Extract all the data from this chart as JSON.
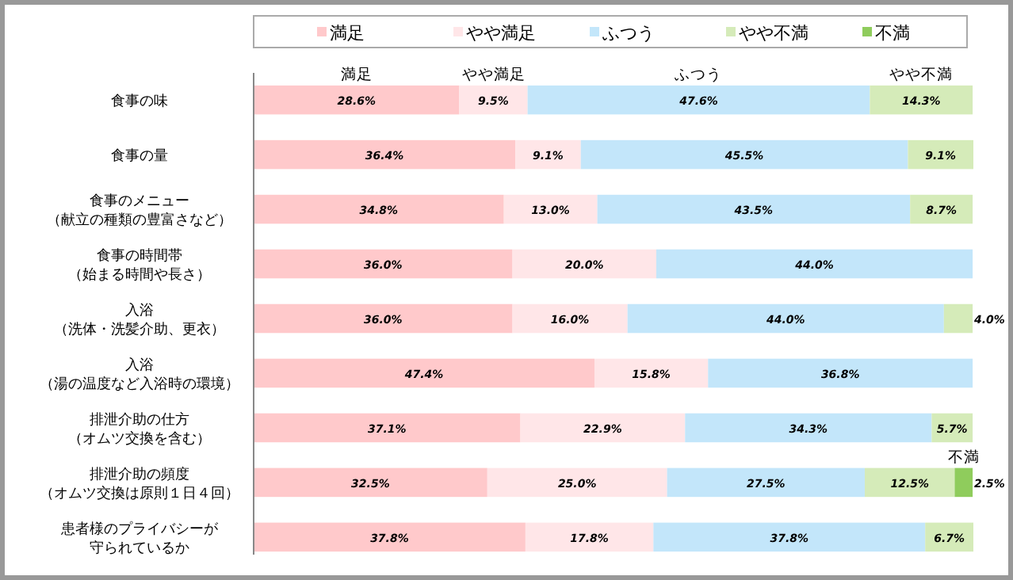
{
  "chart_data": {
    "type": "bar",
    "orientation": "horizontal",
    "stacked": true,
    "categories": [
      "食事の味",
      "食事の量",
      "食事のメニュー（献立の種類の豊富さなど）",
      "食事の時間帯（始まる時間や長さ）",
      "入浴（洗体・洗髪介助、更衣）",
      "入浴（湯の温度など入浴時の環境）",
      "排泄介助の仕方（オムツ交換を含む）",
      "排泄介助の頻度（オムツ交換は原則１日４回）",
      "患者様のプライバシーが守られているか"
    ],
    "series": [
      {
        "name": "満足",
        "color": "#ffc9cb",
        "values": [
          28.6,
          36.4,
          34.8,
          36.0,
          36.0,
          47.4,
          37.1,
          32.5,
          37.8
        ],
        "value_labels": [
          "28.6%",
          "36.4%",
          "34.8%",
          "36.0%",
          "36.0%",
          "47.4%",
          "37.1%",
          "32.5%",
          "37.8%"
        ]
      },
      {
        "name": "やや満足",
        "color": "#ffe6e8",
        "values": [
          9.5,
          9.1,
          13.0,
          20.0,
          16.0,
          15.8,
          22.9,
          25.0,
          17.8
        ],
        "value_labels": [
          "9.5%",
          "9.1%",
          "13.0%",
          "20.0%",
          "16.0%",
          "15.8%",
          "22.9%",
          "25.0%",
          "17.8%"
        ]
      },
      {
        "name": "ふつう",
        "color": "#c3e6fa",
        "values": [
          47.6,
          45.5,
          43.5,
          44.0,
          44.0,
          36.8,
          34.3,
          27.5,
          37.8
        ],
        "value_labels": [
          "47.6%",
          "45.5%",
          "43.5%",
          "44.0%",
          "44.0%",
          "36.8%",
          "34.3%",
          "27.5%",
          "37.8%"
        ]
      },
      {
        "name": "やや不満",
        "color": "#d5ebb9",
        "values": [
          14.3,
          9.1,
          8.7,
          null,
          4.0,
          null,
          5.7,
          12.5,
          6.7
        ],
        "value_labels": [
          "14.3%",
          "9.1%",
          "8.7%",
          null,
          "4.0%",
          null,
          "5.7%",
          "12.5%",
          "6.7%"
        ]
      },
      {
        "name": "不満",
        "color": "#8fcc5c",
        "values": [
          null,
          null,
          null,
          null,
          null,
          null,
          null,
          2.5,
          null
        ],
        "value_labels": [
          null,
          null,
          null,
          null,
          null,
          null,
          null,
          "2.5%",
          null
        ]
      }
    ],
    "xlim": [
      0,
      100.1
    ],
    "tick_labels": "y",
    "legend": "top"
  }
}
